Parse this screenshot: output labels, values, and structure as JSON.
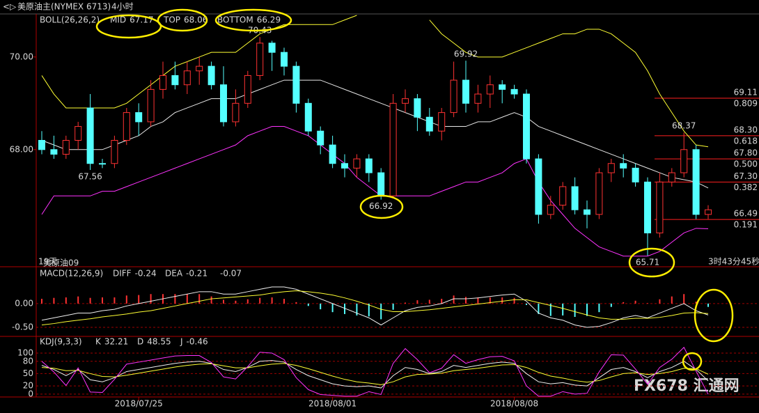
{
  "window": {
    "symbol": "美原油主(NYMEX 6713)",
    "period": "4小时",
    "footer_left": "19天",
    "footer_contract": "美原油09",
    "countdown": "3时43分45秒",
    "watermark": "FX678 汇通网"
  },
  "chart_data": [
    {
      "type": "candlestick",
      "title": "BOLL(26,26,2)",
      "up_color": "#ff3232",
      "down_color": "#54ffff",
      "categories": [
        null,
        null,
        null,
        null,
        null,
        null,
        null,
        null,
        "2018/07/25",
        null,
        null,
        null,
        null,
        null,
        null,
        null,
        null,
        null,
        null,
        null,
        null,
        null,
        null,
        null,
        "2018/08/01",
        null,
        null,
        null,
        null,
        null,
        null,
        null,
        null,
        null,
        null,
        null,
        null,
        null,
        null,
        "2018/08/08",
        null,
        null,
        null,
        null,
        null,
        null,
        null,
        null,
        null,
        null,
        null,
        null,
        null,
        null,
        null,
        null
      ],
      "open": [
        68.2,
        68.0,
        67.9,
        68.2,
        68.9,
        67.7,
        67.7,
        68.2,
        68.8,
        68.6,
        69.3,
        69.6,
        69.4,
        69.7,
        69.8,
        69.4,
        68.6,
        69.0,
        69.6,
        70.3,
        70.1,
        69.8,
        69.0,
        68.4,
        68.1,
        67.7,
        67.6,
        67.8,
        67.5,
        67.0,
        69.0,
        69.1,
        68.7,
        68.4,
        68.8,
        69.5,
        69.0,
        69.2,
        69.4,
        69.3,
        69.2,
        67.8,
        66.6,
        66.8,
        67.2,
        66.7,
        66.6,
        67.5,
        67.7,
        67.6,
        67.3,
        66.2,
        67.3,
        67.5,
        68.0,
        66.6
      ],
      "high": [
        68.4,
        68.3,
        68.3,
        68.6,
        69.2,
        67.8,
        68.3,
        68.9,
        69.0,
        69.5,
        69.9,
        69.9,
        69.9,
        70.0,
        69.9,
        69.8,
        69.3,
        69.7,
        70.43,
        70.35,
        70.2,
        69.9,
        69.1,
        68.5,
        68.3,
        67.9,
        67.9,
        67.9,
        67.6,
        69.2,
        69.3,
        69.2,
        68.9,
        68.9,
        69.9,
        69.92,
        69.4,
        69.6,
        69.5,
        69.4,
        69.3,
        67.9,
        67.0,
        67.3,
        67.4,
        66.9,
        67.6,
        67.8,
        67.9,
        67.7,
        67.4,
        67.5,
        67.6,
        68.37,
        68.1,
        66.8
      ],
      "low": [
        67.9,
        67.8,
        67.8,
        68.0,
        67.56,
        67.6,
        67.6,
        68.1,
        68.3,
        68.5,
        69.1,
        69.3,
        69.2,
        69.4,
        69.3,
        68.5,
        68.5,
        68.9,
        69.5,
        69.7,
        69.6,
        68.8,
        68.3,
        67.9,
        67.6,
        67.4,
        67.4,
        67.3,
        66.92,
        66.95,
        68.8,
        68.4,
        68.3,
        68.2,
        68.7,
        68.8,
        68.8,
        68.9,
        69.0,
        69.1,
        67.7,
        66.4,
        66.5,
        66.7,
        66.6,
        66.3,
        66.5,
        67.3,
        67.4,
        67.2,
        65.71,
        66.1,
        67.2,
        67.4,
        66.5,
        66.5
      ],
      "close": [
        68.0,
        67.9,
        68.2,
        68.5,
        67.7,
        67.7,
        68.2,
        68.8,
        68.6,
        69.3,
        69.6,
        69.4,
        69.7,
        69.8,
        69.4,
        68.6,
        69.0,
        69.6,
        70.3,
        70.1,
        69.8,
        69.0,
        68.4,
        68.1,
        67.7,
        67.6,
        67.8,
        67.5,
        67.0,
        69.0,
        69.1,
        68.7,
        68.4,
        68.8,
        69.5,
        69.0,
        69.2,
        69.4,
        69.3,
        69.2,
        67.8,
        66.6,
        66.8,
        67.2,
        66.7,
        66.6,
        67.5,
        67.7,
        67.6,
        67.3,
        66.2,
        67.3,
        67.5,
        68.0,
        66.6,
        66.7
      ],
      "series": [
        {
          "name": "MID",
          "color": "#e8e8e8",
          "last": 67.17,
          "values": [
            68.2,
            68.1,
            68.0,
            68.0,
            68.0,
            68.0,
            68.1,
            68.2,
            68.3,
            68.5,
            68.6,
            68.8,
            68.9,
            69.0,
            69.1,
            69.1,
            69.1,
            69.2,
            69.3,
            69.4,
            69.5,
            69.5,
            69.5,
            69.5,
            69.4,
            69.3,
            69.2,
            69.1,
            69.0,
            68.9,
            68.8,
            68.7,
            68.6,
            68.5,
            68.5,
            68.5,
            68.6,
            68.6,
            68.7,
            68.8,
            68.7,
            68.5,
            68.4,
            68.3,
            68.2,
            68.1,
            68.0,
            67.9,
            67.8,
            67.7,
            67.6,
            67.5,
            67.4,
            67.35,
            67.3,
            67.17
          ]
        },
        {
          "name": "TOP",
          "color": "#ffff33",
          "last": 68.06,
          "values": [
            69.6,
            69.2,
            68.9,
            68.9,
            68.9,
            68.9,
            68.9,
            69.0,
            69.2,
            69.4,
            69.6,
            69.8,
            69.9,
            70.0,
            70.1,
            70.1,
            70.1,
            70.3,
            70.5,
            70.6,
            70.7,
            70.7,
            70.7,
            70.7,
            70.7,
            70.8,
            70.9,
            null,
            null,
            null,
            null,
            null,
            70.8,
            70.5,
            70.3,
            70.1,
            70.0,
            70.0,
            70.0,
            70.1,
            70.2,
            70.3,
            70.4,
            70.5,
            70.5,
            70.6,
            70.6,
            70.5,
            70.3,
            70.1,
            69.7,
            69.2,
            68.8,
            68.4,
            68.1,
            68.06
          ]
        },
        {
          "name": "BOTTOM",
          "color": "#ff33ff",
          "last": 66.29,
          "values": [
            66.6,
            67.0,
            67.0,
            67.0,
            67.0,
            67.1,
            67.1,
            67.2,
            67.3,
            67.4,
            67.5,
            67.6,
            67.7,
            67.8,
            67.9,
            68.0,
            68.1,
            68.3,
            68.4,
            68.5,
            68.5,
            68.4,
            68.3,
            68.1,
            67.9,
            67.7,
            67.4,
            67.2,
            67.0,
            67.0,
            67.0,
            67.0,
            67.0,
            67.1,
            67.2,
            67.3,
            67.3,
            67.4,
            67.5,
            67.7,
            67.8,
            67.3,
            66.9,
            66.6,
            66.3,
            66.1,
            65.9,
            65.8,
            65.7,
            65.7,
            65.7,
            65.8,
            66.0,
            66.2,
            66.3,
            66.29
          ]
        }
      ],
      "ylim": [
        65.47,
        70.93
      ],
      "yticks": [
        {
          "value": 70,
          "label": "70.00"
        },
        {
          "value": 68,
          "label": "68.00"
        }
      ],
      "price_labels": [
        70.43,
        69.92,
        68.37,
        67.56,
        66.92,
        65.71
      ],
      "levels": [
        {
          "price": {
            "value": 69.11,
            "label": "69.11"
          },
          "ratio": "0.809"
        },
        {
          "price": {
            "value": 68.3,
            "label": "68.30"
          },
          "ratio": "0.618"
        },
        {
          "price": {
            "value": 67.8,
            "label": "67.80"
          },
          "ratio": "0.500"
        },
        {
          "price": {
            "value": 67.3,
            "label": "67.30"
          },
          "ratio": "0.382"
        },
        {
          "price": {
            "value": 66.49,
            "label": "66.49"
          },
          "ratio": "0.191"
        }
      ],
      "level_color": "#ff2020",
      "grid": false
    },
    {
      "type": "macd",
      "title": "MACD(12,26,9)",
      "series": [
        {
          "name": "DIFF",
          "color": "#f0f0f0",
          "last": -0.24,
          "values": [
            -0.35,
            -0.3,
            -0.25,
            -0.2,
            -0.2,
            -0.15,
            -0.12,
            -0.05,
            0.0,
            0.05,
            0.1,
            0.15,
            0.2,
            0.25,
            0.25,
            0.2,
            0.2,
            0.25,
            0.3,
            0.35,
            0.35,
            0.3,
            0.2,
            0.1,
            0.0,
            -0.1,
            -0.2,
            -0.3,
            -0.45,
            -0.3,
            -0.15,
            -0.08,
            -0.05,
            0.0,
            0.1,
            0.1,
            0.12,
            0.15,
            0.18,
            0.2,
            0.05,
            -0.2,
            -0.3,
            -0.35,
            -0.45,
            -0.5,
            -0.48,
            -0.4,
            -0.3,
            -0.25,
            -0.3,
            -0.2,
            -0.1,
            0.0,
            -0.15,
            -0.24
          ]
        },
        {
          "name": "DEA",
          "color": "#ffff33",
          "last": -0.21,
          "values": [
            -0.45,
            -0.42,
            -0.38,
            -0.35,
            -0.32,
            -0.28,
            -0.25,
            -0.22,
            -0.18,
            -0.15,
            -0.1,
            -0.05,
            0.0,
            0.05,
            0.1,
            0.12,
            0.14,
            0.16,
            0.18,
            0.22,
            0.25,
            0.27,
            0.25,
            0.22,
            0.18,
            0.12,
            0.05,
            -0.03,
            -0.12,
            -0.17,
            -0.17,
            -0.15,
            -0.13,
            -0.1,
            -0.07,
            -0.04,
            -0.01,
            0.02,
            0.05,
            0.08,
            0.08,
            0.02,
            -0.04,
            -0.1,
            -0.17,
            -0.24,
            -0.3,
            -0.33,
            -0.33,
            -0.31,
            -0.31,
            -0.29,
            -0.25,
            -0.2,
            -0.19,
            -0.21
          ]
        }
      ],
      "bars": {
        "last": -0.07,
        "up_color": "#ff3232",
        "down_color": "#54ffff",
        "values": [
          0.1,
          0.12,
          0.13,
          0.15,
          0.12,
          0.13,
          0.13,
          0.17,
          0.18,
          0.2,
          0.2,
          0.2,
          0.2,
          0.2,
          0.15,
          0.08,
          0.06,
          0.09,
          0.12,
          0.13,
          0.1,
          0.03,
          -0.05,
          -0.12,
          -0.18,
          -0.22,
          -0.25,
          -0.27,
          -0.33,
          -0.13,
          0.02,
          0.07,
          0.08,
          0.1,
          0.17,
          0.14,
          0.13,
          0.13,
          0.13,
          0.12,
          -0.03,
          -0.22,
          -0.26,
          -0.25,
          -0.28,
          -0.26,
          -0.18,
          -0.07,
          0.03,
          0.06,
          0.01,
          0.09,
          0.15,
          0.2,
          0.04,
          -0.07
        ]
      },
      "ylim": [
        -0.69,
        0.76
      ],
      "yticks": [
        {
          "value": 0,
          "label": "0.00"
        },
        {
          "value": -0.5,
          "label": "-0.50"
        }
      ],
      "grid": true
    },
    {
      "type": "line",
      "title": "KDJ(9,3,3)",
      "series": [
        {
          "name": "K",
          "color": "#f0f0f0",
          "last": 32.21,
          "values": [
            70,
            60,
            45,
            60,
            35,
            30,
            40,
            55,
            60,
            65,
            70,
            75,
            78,
            80,
            75,
            60,
            55,
            65,
            80,
            82,
            78,
            60,
            45,
            35,
            25,
            20,
            18,
            20,
            15,
            45,
            65,
            60,
            50,
            55,
            70,
            65,
            70,
            75,
            78,
            75,
            50,
            30,
            25,
            28,
            22,
            20,
            40,
            60,
            65,
            55,
            40,
            55,
            65,
            80,
            60,
            32.21
          ]
        },
        {
          "name": "D",
          "color": "#ffff33",
          "last": 48.55,
          "values": [
            65,
            63,
            57,
            58,
            50,
            43,
            42,
            46,
            51,
            56,
            61,
            66,
            70,
            73,
            74,
            69,
            64,
            64,
            69,
            73,
            75,
            70,
            62,
            53,
            44,
            36,
            30,
            27,
            23,
            30,
            42,
            48,
            49,
            51,
            57,
            60,
            63,
            67,
            71,
            72,
            65,
            53,
            44,
            39,
            33,
            29,
            33,
            42,
            50,
            52,
            48,
            50,
            55,
            63,
            62,
            48.55
          ]
        },
        {
          "name": "J",
          "color": "#ff33ff",
          "last": -0.46,
          "values": [
            80,
            54,
            21,
            64,
            5,
            4,
            36,
            73,
            78,
            83,
            88,
            93,
            94,
            94,
            77,
            42,
            37,
            67,
            102,
            100,
            84,
            40,
            11,
            -1,
            -3,
            -5,
            -5,
            6,
            -1,
            75,
            111,
            84,
            52,
            63,
            96,
            75,
            84,
            91,
            92,
            81,
            20,
            -5,
            -5,
            6,
            0,
            2,
            54,
            96,
            95,
            61,
            24,
            65,
            85,
            114,
            56,
            -0.46
          ]
        }
      ],
      "ylim": [
        -7,
        139
      ],
      "yticks": [
        100,
        80,
        50,
        20,
        0
      ],
      "grid": true
    }
  ]
}
